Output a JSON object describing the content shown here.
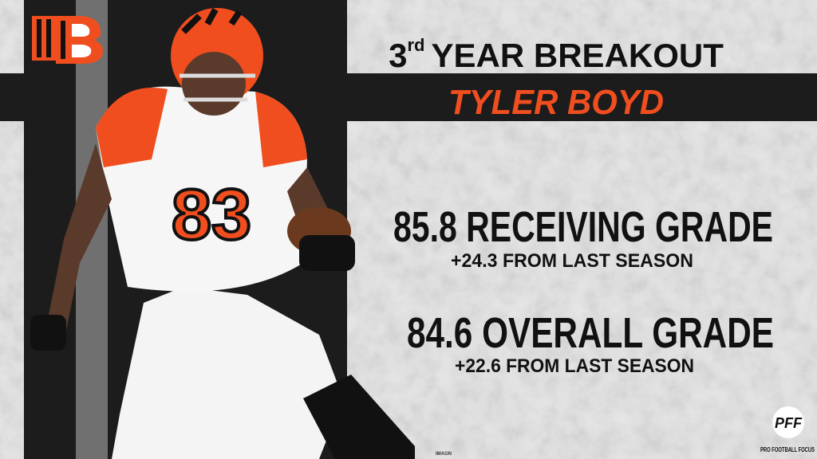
{
  "headline": {
    "number": "3",
    "ordinal": "rd",
    "text": "YEAR BREAKOUT"
  },
  "player": {
    "name": "TYLER BOYD",
    "jersey_number": "83"
  },
  "stats": [
    {
      "grade": "85.8 RECEIVING GRADE",
      "change": "+24.3 FROM LAST SEASON"
    },
    {
      "grade": "84.6 OVERALL GRADE",
      "change": "+22.6 FROM LAST SEASON"
    }
  ],
  "branding": {
    "logo": "PFF",
    "name": "PRO FOOTBALL FOCUS",
    "photo_credit": "IMAGN"
  }
}
